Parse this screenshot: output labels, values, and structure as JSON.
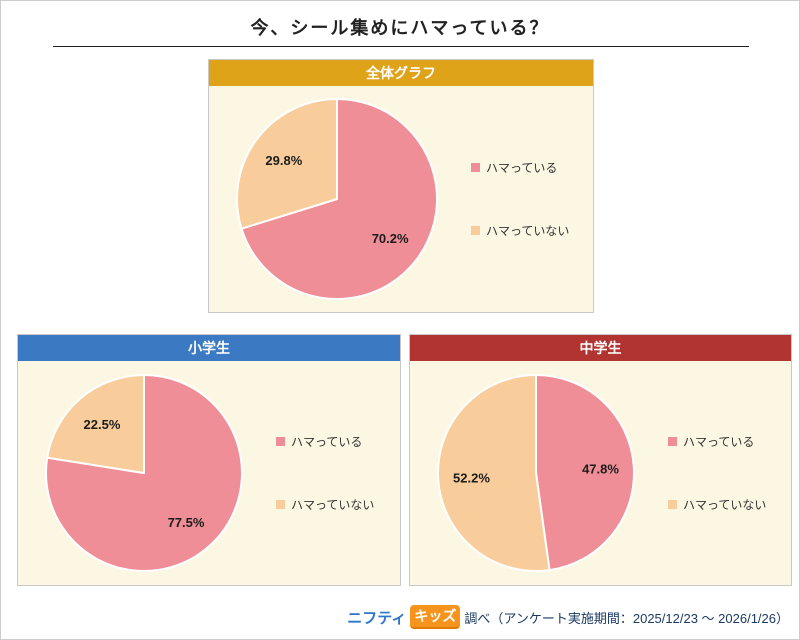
{
  "page": {
    "title": "今、シール集めにハマっている？"
  },
  "footer": {
    "logo_nifty": "ニフティ",
    "logo_kids": "キッズ",
    "credit": "調べ（アンケート実施期間：2025/12/23 ～ 2026/1/26）"
  },
  "colors": {
    "hooked": "#EF8E97",
    "not_hooked": "#F8CD9B",
    "panel_background": "#FBF7E3",
    "header_overall": "#DFA319",
    "header_elementary": "#3B7AC2",
    "header_middle": "#B03431"
  },
  "chart_data": [
    {
      "type": "pie",
      "title": "全体グラフ",
      "header_color": "#DFA319",
      "labels": [
        "ハマっている",
        "ハマっていない"
      ],
      "values": [
        70.2,
        29.8
      ],
      "data_labels": [
        "70.2%",
        "29.8%"
      ],
      "colors": [
        "#EF8E97",
        "#F8CD9B"
      ],
      "start_angle": "top",
      "direction": "clockwise",
      "legend_position": "right"
    },
    {
      "type": "pie",
      "title": "小学生",
      "header_color": "#3B7AC2",
      "labels": [
        "ハマっている",
        "ハマっていない"
      ],
      "values": [
        77.5,
        22.5
      ],
      "data_labels": [
        "77.5%",
        "22.5%"
      ],
      "colors": [
        "#EF8E97",
        "#F8CD9B"
      ],
      "start_angle": "top",
      "direction": "clockwise",
      "legend_position": "right"
    },
    {
      "type": "pie",
      "title": "中学生",
      "header_color": "#B13431",
      "labels": [
        "ハマっている",
        "ハマっていない"
      ],
      "values": [
        47.8,
        52.2
      ],
      "data_labels": [
        "47.8%",
        "52.2%"
      ],
      "colors": [
        "#EF8E97",
        "#F8CD9B"
      ],
      "start_angle": "top",
      "direction": "clockwise",
      "legend_position": "right"
    }
  ]
}
